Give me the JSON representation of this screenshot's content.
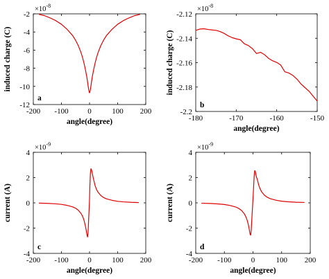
{
  "chart_data": [
    {
      "panel": "a",
      "type": "line",
      "xlabel": "angle(degree)",
      "ylabel": "induced charge (C)",
      "multiplier": {
        "base": "×10",
        "exp": "-8"
      },
      "xlim": [
        -200,
        200
      ],
      "ylim": [
        -12,
        -2
      ],
      "xticks": [
        -200,
        -100,
        0,
        100,
        200
      ],
      "yticks": [
        -12,
        -10,
        -8,
        -6,
        -4,
        -2
      ],
      "grid": false,
      "color": "#e00000",
      "series": [
        {
          "x": [
            -180,
            -160,
            -140,
            -120,
            -100,
            -80,
            -60,
            -50,
            -40,
            -30,
            -25,
            -20,
            -15,
            -10,
            -7,
            -5,
            -3,
            -1,
            0,
            1,
            3,
            5,
            7,
            10,
            15,
            20,
            25,
            30,
            40,
            50,
            60,
            80,
            100,
            120,
            140,
            160,
            180
          ],
          "y": [
            -2.05,
            -2.2,
            -2.45,
            -2.75,
            -3.15,
            -3.7,
            -4.4,
            -4.9,
            -5.5,
            -6.3,
            -6.8,
            -7.4,
            -8.1,
            -8.9,
            -9.5,
            -9.95,
            -10.35,
            -10.65,
            -10.7,
            -10.65,
            -10.35,
            -9.95,
            -9.5,
            -8.9,
            -8.1,
            -7.4,
            -6.8,
            -6.3,
            -5.5,
            -4.9,
            -4.4,
            -3.7,
            -3.15,
            -2.75,
            -2.45,
            -2.2,
            -2.05
          ]
        }
      ]
    },
    {
      "panel": "b",
      "type": "line",
      "xlabel": "angle(degree)",
      "ylabel": "induced charge (C)",
      "multiplier": {
        "base": "×10",
        "exp": "-8"
      },
      "xlim": [
        -180,
        -150
      ],
      "ylim": [
        -2.2,
        -2.12
      ],
      "xticks": [
        -180,
        -170,
        -160,
        -150
      ],
      "yticks": [
        -2.2,
        -2.18,
        -2.16,
        -2.14,
        -2.12
      ],
      "grid": false,
      "color": "#e00000",
      "series": [
        {
          "x": [
            -180,
            -179,
            -178,
            -177,
            -176,
            -175,
            -174,
            -173,
            -172,
            -171,
            -170,
            -169,
            -168,
            -167,
            -166,
            -165,
            -164,
            -163,
            -162,
            -161,
            -160,
            -159,
            -158,
            -157,
            -156,
            -155,
            -154,
            -153,
            -152,
            -151,
            -150
          ],
          "y": [
            -2.1335,
            -2.1325,
            -2.1322,
            -2.1328,
            -2.1332,
            -2.1335,
            -2.1345,
            -2.136,
            -2.138,
            -2.1395,
            -2.1405,
            -2.1412,
            -2.1445,
            -2.146,
            -2.1485,
            -2.1525,
            -2.1515,
            -2.1535,
            -2.1565,
            -2.1585,
            -2.1598,
            -2.162,
            -2.1675,
            -2.1685,
            -2.1705,
            -2.1735,
            -2.1775,
            -2.1805,
            -2.1835,
            -2.1875,
            -2.1915
          ]
        }
      ]
    },
    {
      "panel": "c",
      "type": "line",
      "xlabel": "angle(degree)",
      "ylabel": "current (A)",
      "multiplier": {
        "base": "×10",
        "exp": "-9"
      },
      "xlim": [
        -200,
        200
      ],
      "ylim": [
        -4,
        4
      ],
      "xticks": [
        -200,
        -100,
        0,
        100,
        200
      ],
      "yticks": [
        -4,
        -2,
        0,
        2,
        4
      ],
      "grid": false,
      "color": "#e00000",
      "series": [
        {
          "x": [
            -180,
            -150,
            -120,
            -100,
            -80,
            -60,
            -50,
            -40,
            -30,
            -25,
            -20,
            -15,
            -12,
            -9,
            -7,
            -5,
            -3,
            -1,
            0,
            1,
            3,
            5,
            7,
            9,
            12,
            15,
            20,
            25,
            30,
            40,
            50,
            60,
            80,
            100,
            120,
            150,
            175
          ],
          "y": [
            -0.02,
            -0.04,
            -0.08,
            -0.12,
            -0.2,
            -0.32,
            -0.42,
            -0.58,
            -0.85,
            -1.05,
            -1.35,
            -1.8,
            -2.15,
            -2.55,
            -2.7,
            -2.3,
            -1.2,
            -0.3,
            0.3,
            1.2,
            2.3,
            2.7,
            2.62,
            2.45,
            2.1,
            1.8,
            1.35,
            1.05,
            0.85,
            0.58,
            0.42,
            0.32,
            0.2,
            0.12,
            0.08,
            0.04,
            0.02
          ]
        }
      ]
    },
    {
      "panel": "d",
      "type": "line",
      "xlabel": "angle(degree)",
      "ylabel": "current (A)",
      "multiplier": {
        "base": "×10",
        "exp": "-9"
      },
      "xlim": [
        -200,
        200
      ],
      "ylim": [
        -4,
        4
      ],
      "xticks": [
        -200,
        -100,
        0,
        100,
        200
      ],
      "yticks": [
        -4,
        -2,
        0,
        2,
        4
      ],
      "grid": false,
      "color": "#e00000",
      "series": [
        {
          "x": [
            -180,
            -150,
            -120,
            -100,
            -80,
            -60,
            -50,
            -40,
            -30,
            -25,
            -20,
            -15,
            -12,
            -10,
            -8,
            -6,
            -4,
            -2,
            0,
            2,
            4,
            6,
            8,
            10,
            12,
            15,
            20,
            25,
            30,
            40,
            50,
            60,
            80,
            100,
            120,
            150,
            180
          ],
          "y": [
            -0.03,
            -0.05,
            -0.09,
            -0.13,
            -0.21,
            -0.33,
            -0.44,
            -0.6,
            -0.88,
            -1.1,
            -1.4,
            -1.85,
            -2.25,
            -2.5,
            -2.55,
            -2.1,
            -1.25,
            -0.45,
            0.3,
            1.2,
            2.1,
            2.55,
            2.5,
            2.25,
            2.05,
            1.85,
            1.4,
            1.1,
            0.88,
            0.6,
            0.44,
            0.33,
            0.21,
            0.13,
            0.09,
            0.05,
            0.03
          ]
        }
      ]
    }
  ]
}
